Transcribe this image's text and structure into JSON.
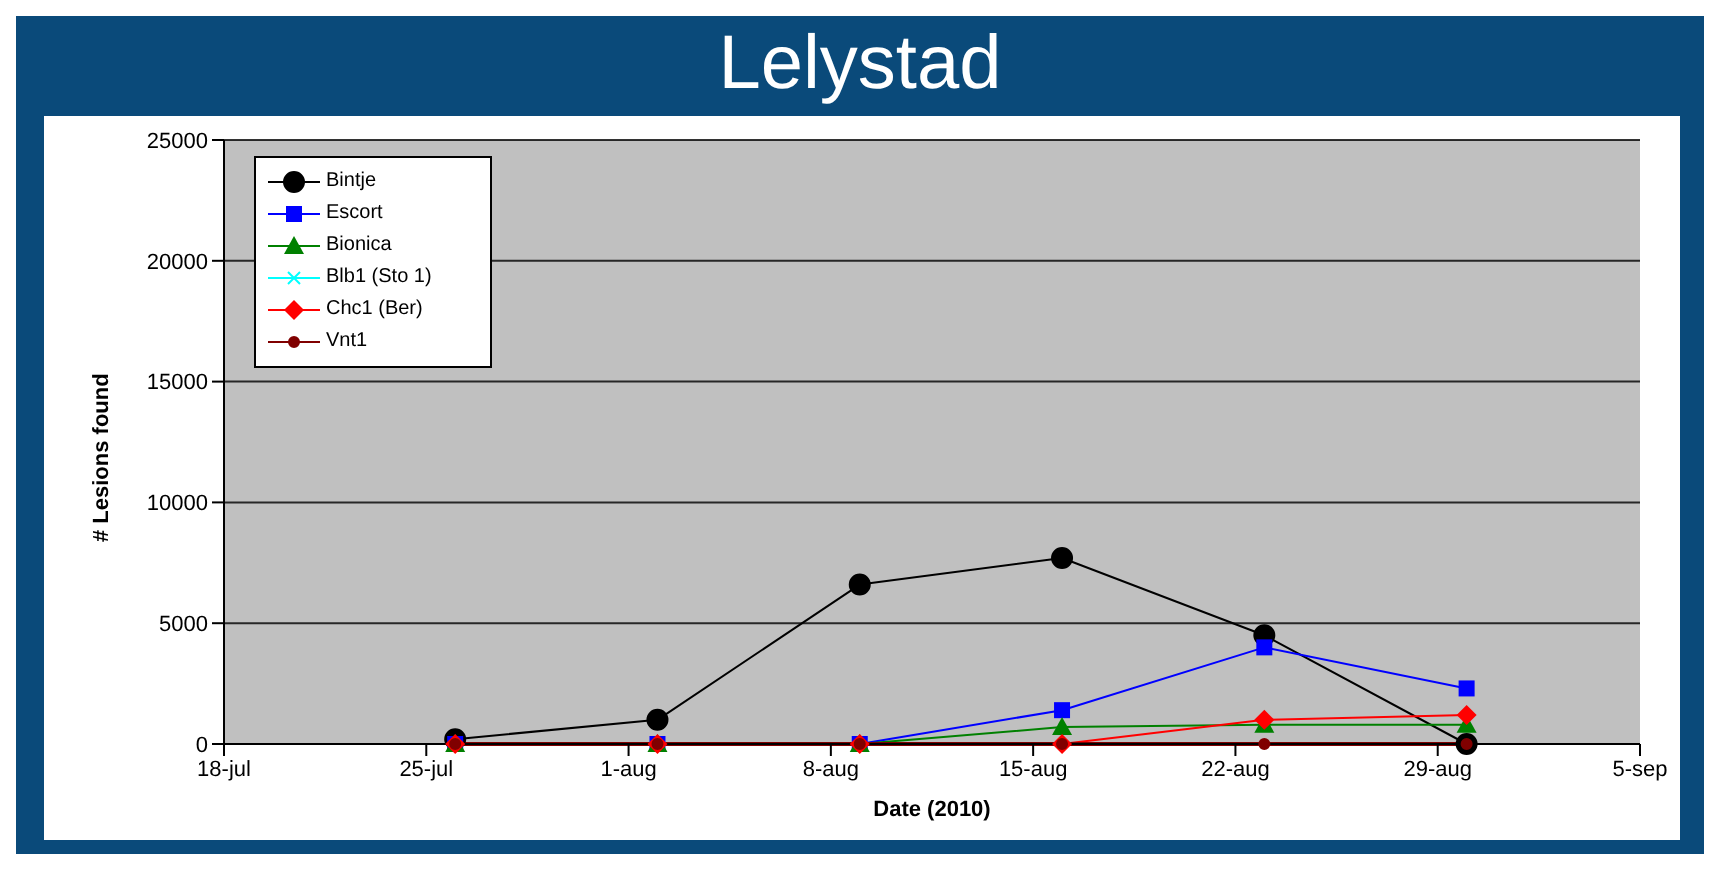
{
  "chart_data": {
    "type": "line",
    "title": "Lelystad",
    "xlabel": "Date (2010)",
    "ylabel": "# Lesions found",
    "x": [
      "2010-07-26",
      "2010-08-02",
      "2010-08-09",
      "2010-08-16",
      "2010-08-23",
      "2010-08-30"
    ],
    "series": [
      {
        "name": "Bintje",
        "color": "#000000",
        "marker": "circle",
        "values": [
          200,
          1000,
          6600,
          7700,
          4500,
          0
        ]
      },
      {
        "name": "Escort",
        "color": "#0000ff",
        "marker": "square",
        "values": [
          0,
          0,
          0,
          1400,
          4000,
          2300
        ]
      },
      {
        "name": "Bionica",
        "color": "#008000",
        "marker": "triangle",
        "values": [
          0,
          0,
          0,
          700,
          800,
          800
        ]
      },
      {
        "name": "Blb1 (Sto 1)",
        "color": "#00ffff",
        "marker": "cross",
        "values": [
          null,
          null,
          null,
          null,
          null,
          null
        ]
      },
      {
        "name": "Chc1 (Ber)",
        "color": "#ff0000",
        "marker": "diamond",
        "values": [
          0,
          0,
          0,
          0,
          1000,
          1200
        ]
      },
      {
        "name": "Vnt1",
        "color": "#800000",
        "marker": "circle",
        "values": [
          0,
          0,
          0,
          0,
          0,
          0
        ]
      }
    ],
    "xlim": [
      "2010-07-18",
      "2010-09-05"
    ],
    "xticks": [
      {
        "value": "2010-07-18",
        "label": "18-jul"
      },
      {
        "value": "2010-07-25",
        "label": "25-jul"
      },
      {
        "value": "2010-08-01",
        "label": "1-aug"
      },
      {
        "value": "2010-08-08",
        "label": "8-aug"
      },
      {
        "value": "2010-08-15",
        "label": "15-aug"
      },
      {
        "value": "2010-08-22",
        "label": "22-aug"
      },
      {
        "value": "2010-08-29",
        "label": "29-aug"
      },
      {
        "value": "2010-09-05",
        "label": "5-sep"
      }
    ],
    "ylim": [
      0,
      25000
    ],
    "yticks": [
      0,
      5000,
      10000,
      15000,
      20000,
      25000
    ],
    "grid": "y",
    "legend": "top left"
  }
}
